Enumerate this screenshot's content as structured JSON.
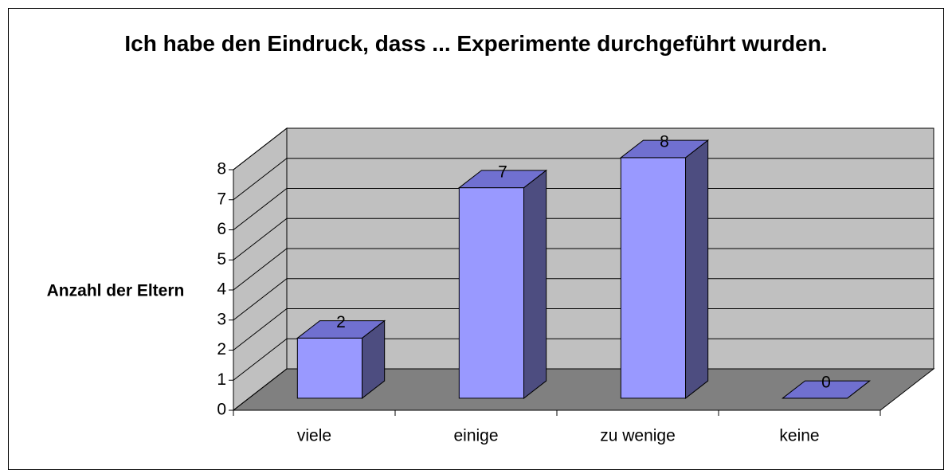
{
  "chart_data": {
    "type": "bar3d",
    "title": "Ich habe den Eindruck, dass ... Experimente durchgeführt wurden.",
    "y_label": "Anzahl der Eltern",
    "categories": [
      "viele",
      "einige",
      "zu wenige",
      "keine"
    ],
    "values": [
      2,
      7,
      8,
      0
    ],
    "color": "#9999ff",
    "ylim": [
      0,
      8
    ],
    "yticks": [
      0,
      1,
      2,
      3,
      4,
      5,
      6,
      7,
      8
    ],
    "grid": true
  }
}
